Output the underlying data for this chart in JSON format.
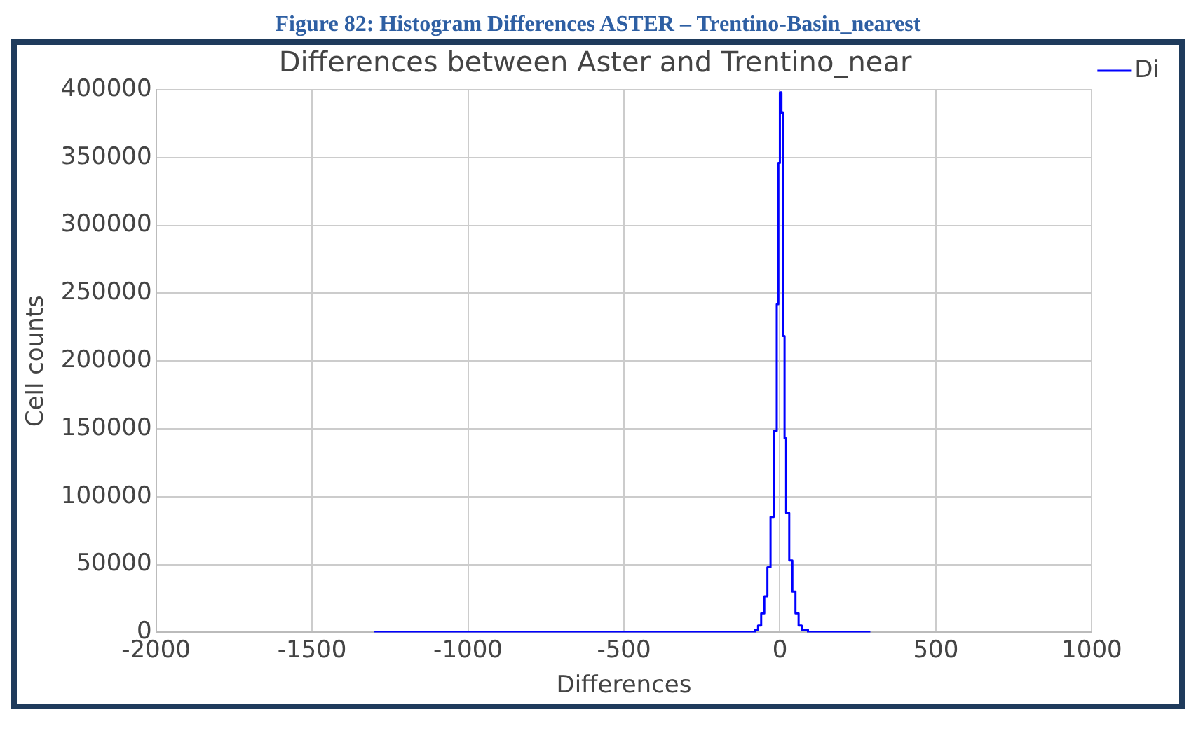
{
  "chart_data": {
    "type": "histogram",
    "title": "Differences between Aster and Trentino_near",
    "xlabel": "Differences",
    "ylabel": "Cell counts",
    "annotations": [
      "Figure 82: Histogram Differences ASTER – Trentino-Basin_nearest"
    ],
    "bins": [
      -1300,
      -80,
      -70,
      -60,
      -50,
      -40,
      -30,
      -20,
      -10,
      -5,
      0,
      5,
      10,
      15,
      20,
      30,
      40,
      50,
      60,
      70,
      90,
      290
    ],
    "series": [
      {
        "name": "Di",
        "color": "#0000ff",
        "values": [
          0,
          2000,
          5000,
          14000,
          26500,
          48000,
          85000,
          148500,
          242000,
          346000,
          398000,
          383000,
          218500,
          143000,
          88000,
          53000,
          30000,
          14000,
          5000,
          2000,
          0
        ]
      }
    ],
    "xlim": [
      -2000,
      1000
    ],
    "xticks": [
      -2000,
      -1500,
      -1000,
      -500,
      0,
      500,
      1000
    ],
    "ylim": [
      0,
      400000
    ],
    "yticks": [
      0,
      50000,
      100000,
      150000,
      200000,
      250000,
      300000,
      350000,
      400000
    ],
    "grid": true,
    "legend": "top right",
    "line_style": "solid",
    "marker": "none"
  }
}
